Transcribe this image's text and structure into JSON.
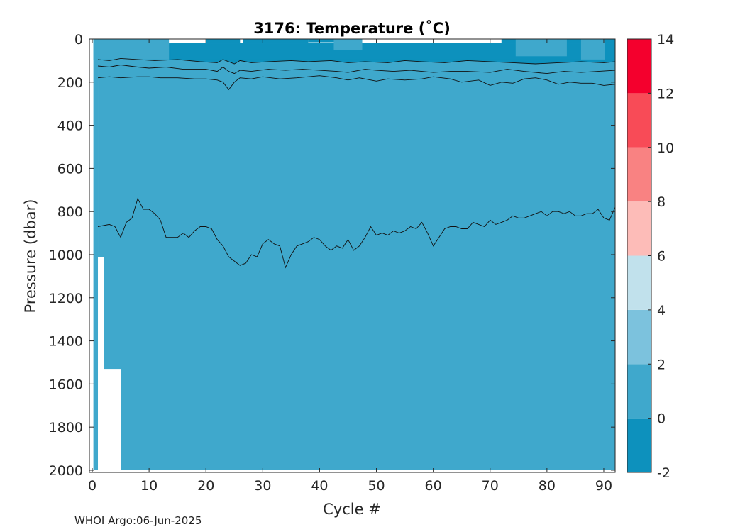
{
  "chart_data": {
    "type": "heatmap",
    "title": "3176:  Temperature (˚C)",
    "xlabel": "Cycle #",
    "ylabel": "Pressure (dbar)",
    "xlim": [
      -0.5,
      92
    ],
    "ylim": [
      0,
      2010
    ],
    "y_reversed": true,
    "x_ticks": [
      "0",
      "10",
      "20",
      "30",
      "40",
      "50",
      "60",
      "70",
      "80",
      "90"
    ],
    "y_ticks": [
      "0",
      "200",
      "400",
      "600",
      "800",
      "1000",
      "1200",
      "1400",
      "1600",
      "1800",
      "2000"
    ],
    "colorbar": {
      "ticks": [
        "-2",
        "0",
        "2",
        "4",
        "6",
        "8",
        "10",
        "12",
        "14"
      ],
      "range": [
        -2,
        14
      ],
      "levels": [
        {
          "from": -2,
          "to": 0,
          "color": "#0d91bd"
        },
        {
          "from": 0,
          "to": 2,
          "color": "#3fa8cc"
        },
        {
          "from": 2,
          "to": 4,
          "color": "#7cc2dd"
        },
        {
          "from": 4,
          "to": 6,
          "color": "#c1e1ec"
        },
        {
          "from": 6,
          "to": 8,
          "color": "#fdbcb8"
        },
        {
          "from": 8,
          "to": 10,
          "color": "#f98282"
        },
        {
          "from": 10,
          "to": 12,
          "color": "#f84b57"
        },
        {
          "from": 12,
          "to": 14,
          "color": "#f4002d"
        }
      ]
    },
    "field_color": "#3fa8cc",
    "cold_layer_color": "#0d91bd",
    "missing_color": "#ffffff",
    "profile_max_depth": [
      {
        "from_cycle": 0,
        "to_cycle": 1,
        "max_pressure": 2000
      },
      {
        "from_cycle": 1,
        "to_cycle": 2,
        "max_pressure": 1010
      },
      {
        "from_cycle": 2,
        "to_cycle": 5,
        "max_pressure": 1530
      },
      {
        "from_cycle": 5,
        "to_cycle": 92,
        "max_pressure": 2000
      }
    ],
    "contours": [
      {
        "name": "0 ˚C deep",
        "cycles": [
          1,
          3,
          4,
          5,
          6,
          7,
          8,
          9,
          10,
          11,
          12,
          13,
          14,
          15,
          16,
          17,
          18,
          19,
          20,
          21,
          22,
          23,
          24,
          25,
          26,
          27,
          28,
          29,
          30,
          31,
          32,
          33,
          34,
          35,
          36,
          37,
          38,
          39,
          40,
          41,
          42,
          43,
          44,
          45,
          46,
          47,
          48,
          49,
          50,
          51,
          52,
          53,
          54,
          55,
          56,
          57,
          58,
          59,
          60,
          61,
          62,
          63,
          64,
          65,
          66,
          67,
          68,
          69,
          70,
          71,
          72,
          73,
          74,
          75,
          76,
          77,
          78,
          79,
          80,
          81,
          82,
          83,
          84,
          85,
          86,
          87,
          88,
          89,
          90,
          91,
          92
        ],
        "pressure": [
          870,
          860,
          870,
          920,
          850,
          830,
          740,
          790,
          790,
          810,
          840,
          920,
          920,
          920,
          900,
          920,
          890,
          870,
          870,
          880,
          930,
          960,
          1010,
          1030,
          1050,
          1040,
          1000,
          1010,
          950,
          930,
          950,
          960,
          1060,
          1000,
          960,
          950,
          940,
          920,
          930,
          960,
          980,
          960,
          970,
          930,
          980,
          960,
          920,
          870,
          910,
          900,
          910,
          890,
          900,
          890,
          870,
          880,
          850,
          900,
          960,
          920,
          880,
          870,
          870,
          880,
          880,
          850,
          860,
          870,
          840,
          860,
          850,
          840,
          820,
          830,
          830,
          820,
          810,
          800,
          820,
          800,
          800,
          810,
          800,
          820,
          820,
          810,
          810,
          790,
          830,
          840,
          780
        ]
      },
      {
        "name": "0 ˚C upper",
        "cycles": [
          1,
          3,
          5,
          8,
          10,
          12,
          15,
          18,
          20,
          22,
          23,
          24,
          25,
          26,
          28,
          30,
          33,
          36,
          40,
          43,
          45,
          47,
          50,
          52,
          55,
          58,
          60,
          63,
          65,
          68,
          70,
          72,
          74,
          76,
          78,
          80,
          82,
          84,
          86,
          88,
          90,
          92
        ],
        "pressure": [
          180,
          175,
          180,
          175,
          175,
          180,
          180,
          185,
          185,
          190,
          200,
          235,
          200,
          180,
          185,
          175,
          185,
          180,
          170,
          180,
          190,
          180,
          195,
          185,
          190,
          185,
          175,
          185,
          200,
          190,
          215,
          200,
          205,
          185,
          180,
          190,
          210,
          200,
          205,
          205,
          215,
          210
        ]
      },
      {
        "name": "-1 ˚C",
        "cycles": [
          1,
          3,
          5,
          8,
          10,
          13,
          16,
          20,
          22,
          23,
          24,
          25,
          26,
          28,
          31,
          34,
          37,
          40,
          43,
          45,
          48,
          50,
          53,
          56,
          60,
          63,
          66,
          70,
          73,
          76,
          80,
          83,
          86,
          89,
          92
        ],
        "pressure": [
          125,
          130,
          120,
          130,
          135,
          130,
          140,
          140,
          150,
          130,
          150,
          160,
          145,
          150,
          140,
          145,
          140,
          145,
          150,
          155,
          140,
          145,
          150,
          145,
          155,
          150,
          150,
          155,
          140,
          150,
          160,
          150,
          155,
          150,
          145
        ]
      },
      {
        "name": "-1.5 ˚C",
        "cycles": [
          1,
          3,
          5,
          8,
          11,
          15,
          19,
          22,
          23,
          24,
          25,
          26,
          28,
          31,
          35,
          38,
          42,
          45,
          48,
          52,
          55,
          58,
          62,
          66,
          70,
          74,
          78,
          82,
          86,
          90,
          92
        ],
        "pressure": [
          95,
          100,
          90,
          95,
          100,
          95,
          105,
          110,
          95,
          105,
          115,
          100,
          110,
          105,
          100,
          105,
          100,
          110,
          105,
          110,
          100,
          105,
          110,
          100,
          105,
          110,
          115,
          110,
          105,
          110,
          105
        ]
      }
    ],
    "surface_cold_patches": [
      {
        "from_cycle": 0.2,
        "to_cycle": 13.3,
        "from_pressure": 0,
        "to_pressure": 20
      },
      {
        "from_cycle": 13.8,
        "to_cycle": 92,
        "from_pressure": 20,
        "to_pressure": 95
      },
      {
        "from_cycle": 20,
        "to_cycle": 26,
        "from_pressure": 0,
        "to_pressure": 20
      },
      {
        "from_cycle": 26.5,
        "to_cycle": 38,
        "from_pressure": 0,
        "to_pressure": 20
      },
      {
        "from_cycle": 38,
        "to_cycle": 43,
        "from_pressure": 0,
        "to_pressure": 15
      },
      {
        "from_cycle": 72,
        "to_cycle": 92,
        "from_pressure": 0,
        "to_pressure": 20
      }
    ],
    "warm_inlets": [
      {
        "from_cycle": 0.2,
        "to_cycle": 13.5,
        "from_pressure": 0,
        "to_pressure": 95
      },
      {
        "from_cycle": 42.5,
        "to_cycle": 47.5,
        "from_pressure": 0,
        "to_pressure": 50
      },
      {
        "from_cycle": 74.5,
        "to_cycle": 83.5,
        "from_pressure": 0,
        "to_pressure": 80
      },
      {
        "from_cycle": 86,
        "to_cycle": 90.2,
        "from_pressure": 0,
        "to_pressure": 95
      }
    ]
  },
  "footer": "WHOI Argo:06-Jun-2025"
}
